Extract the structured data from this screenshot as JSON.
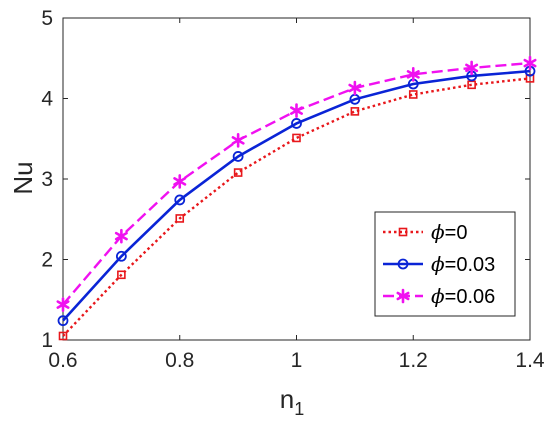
{
  "chart_data": {
    "type": "line",
    "title": "",
    "xlabel": "n",
    "xlabel_sub": "1",
    "ylabel": "Nu",
    "xlim": [
      0.6,
      1.4
    ],
    "ylim": [
      1,
      5
    ],
    "xticks": [
      "0.6",
      "0.8",
      "1",
      "1.2",
      "1.4"
    ],
    "yticks": [
      "1",
      "2",
      "3",
      "4",
      "5"
    ],
    "x": [
      0.6,
      0.7,
      0.8,
      0.9,
      1.0,
      1.1,
      1.2,
      1.3,
      1.4
    ],
    "grid": false,
    "legend_position": "bottom-right",
    "series": [
      {
        "name": "ϕ=0",
        "name_symbol": "ϕ",
        "name_value": "=0",
        "color": "#e8171b",
        "line_style": "dotted",
        "marker": "square",
        "values": [
          1.05,
          1.81,
          2.51,
          3.08,
          3.51,
          3.84,
          4.05,
          4.17,
          4.25
        ]
      },
      {
        "name": "ϕ=0.03",
        "name_symbol": "ϕ",
        "name_value": "=0.03",
        "color": "#0a24d6",
        "line_style": "solid",
        "marker": "circle",
        "values": [
          1.24,
          2.04,
          2.74,
          3.28,
          3.69,
          3.99,
          4.18,
          4.28,
          4.34
        ]
      },
      {
        "name": "ϕ=0.06",
        "name_symbol": "ϕ",
        "name_value": "=0.06",
        "color": "#f011f0",
        "line_style": "dashed",
        "marker": "star",
        "values": [
          1.44,
          2.29,
          2.97,
          3.48,
          3.85,
          4.13,
          4.3,
          4.38,
          4.44
        ]
      }
    ]
  }
}
